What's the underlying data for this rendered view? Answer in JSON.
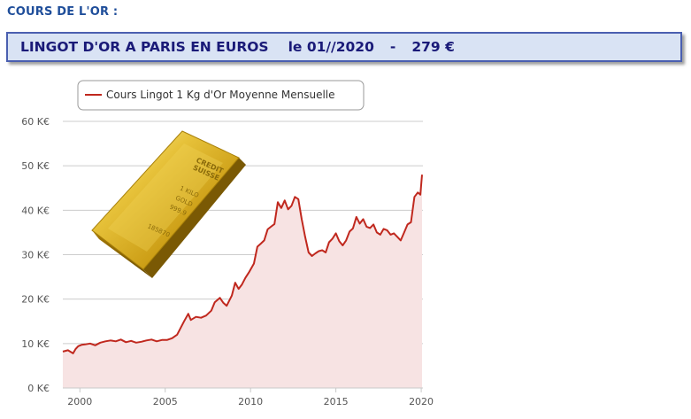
{
  "header": {
    "section_title": "COURS DE L'OR :",
    "banner_title": "LINGOT D'OR A PARIS EN EUROS",
    "banner_date": "le 01//2020",
    "banner_sep": "-",
    "banner_price": "279 €"
  },
  "image": {
    "bar_icon": "gold-bar-icon",
    "bar_stamp_lines": [
      "CREDIT",
      "SUISSE",
      "1 KILO",
      "GOLD",
      "999.9",
      "185870"
    ]
  },
  "chart_data": {
    "type": "area",
    "title": "",
    "xlabel": "",
    "ylabel": "",
    "legend": {
      "entries": [
        "Cours Lingot 1 Kg d'Or Moyenne Mensuelle"
      ],
      "placement": "top-left"
    },
    "grid": true,
    "xlim": [
      1999.0,
      2020.1
    ],
    "ylim": [
      0,
      60000
    ],
    "x_ticks": [
      2000,
      2005,
      2010,
      2015,
      2020
    ],
    "x_tick_labels": [
      "2000",
      "2005",
      "2010",
      "2015",
      "2020"
    ],
    "y_ticks": [
      0,
      10000,
      20000,
      30000,
      40000,
      50000,
      60000
    ],
    "y_tick_labels": [
      "0 K€",
      "10 K€",
      "20 K€",
      "30 K€",
      "40 K€",
      "50 K€",
      "60 K€"
    ],
    "colors": {
      "line": "#c0281e",
      "fill": "#f7e3e3",
      "grid": "#cccccc"
    },
    "series": [
      {
        "name": "Cours Lingot 1 Kg d'Or Moyenne Mensuelle",
        "x": [
          1999.0,
          1999.3,
          1999.6,
          1999.75,
          1999.9,
          2000.1,
          2000.3,
          2000.6,
          2000.9,
          2001.2,
          2001.5,
          2001.8,
          2002.1,
          2002.4,
          2002.7,
          2003.0,
          2003.3,
          2003.6,
          2003.9,
          2004.2,
          2004.5,
          2004.8,
          2005.1,
          2005.4,
          2005.7,
          2005.9,
          2006.1,
          2006.35,
          2006.5,
          2006.8,
          2007.1,
          2007.4,
          2007.7,
          2007.9,
          2008.2,
          2008.4,
          2008.6,
          2008.9,
          2009.1,
          2009.3,
          2009.5,
          2009.7,
          2009.9,
          2010.2,
          2010.4,
          2010.6,
          2010.8,
          2011.0,
          2011.2,
          2011.4,
          2011.6,
          2011.8,
          2012.0,
          2012.2,
          2012.4,
          2012.6,
          2012.8,
          2013.0,
          2013.2,
          2013.4,
          2013.6,
          2013.8,
          2014.0,
          2014.2,
          2014.4,
          2014.6,
          2014.8,
          2015.0,
          2015.2,
          2015.4,
          2015.6,
          2015.8,
          2016.0,
          2016.2,
          2016.4,
          2016.6,
          2016.8,
          2017.0,
          2017.2,
          2017.4,
          2017.6,
          2017.8,
          2018.0,
          2018.2,
          2018.4,
          2018.6,
          2018.8,
          2019.0,
          2019.2,
          2019.4,
          2019.6,
          2019.8,
          2019.95,
          2020.05
        ],
        "values": [
          8200,
          8500,
          7800,
          8800,
          9400,
          9700,
          9800,
          10000,
          9600,
          10200,
          10500,
          10700,
          10500,
          10900,
          10300,
          10600,
          10200,
          10400,
          10700,
          10900,
          10500,
          10800,
          10800,
          11200,
          12000,
          13500,
          15000,
          16700,
          15300,
          16000,
          15800,
          16300,
          17400,
          19300,
          20300,
          19200,
          18500,
          20800,
          23700,
          22300,
          23300,
          24800,
          26000,
          28000,
          31800,
          32500,
          33200,
          35700,
          36300,
          36900,
          41800,
          40500,
          42200,
          40200,
          41000,
          43000,
          42500,
          38000,
          34000,
          30500,
          29700,
          30300,
          30800,
          31000,
          30500,
          32800,
          33600,
          34800,
          33000,
          32100,
          33200,
          35200,
          35900,
          38500,
          37000,
          38000,
          36300,
          36000,
          36800,
          35000,
          34500,
          35800,
          35500,
          34500,
          34800,
          34000,
          33200,
          35000,
          36800,
          37300,
          43000,
          44000,
          43500,
          48000
        ]
      }
    ]
  }
}
